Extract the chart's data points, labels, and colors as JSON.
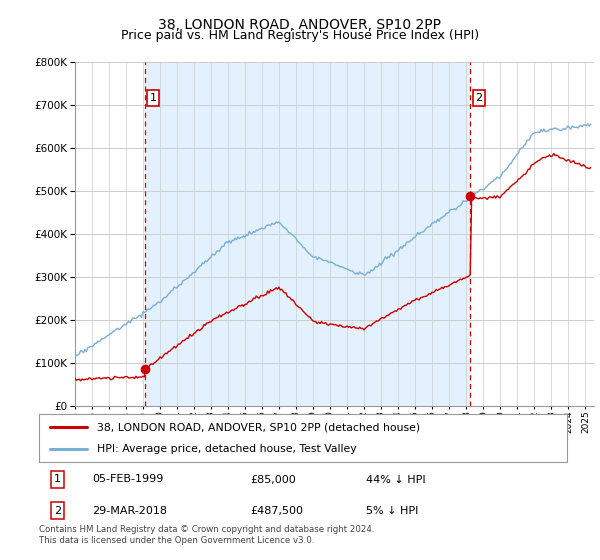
{
  "title": "38, LONDON ROAD, ANDOVER, SP10 2PP",
  "subtitle": "Price paid vs. HM Land Registry's House Price Index (HPI)",
  "ylim": [
    0,
    800000
  ],
  "yticks": [
    0,
    100000,
    200000,
    300000,
    400000,
    500000,
    600000,
    700000,
    800000
  ],
  "xlim_start": 1995.0,
  "xlim_end": 2025.5,
  "sale1_date": 1999.09,
  "sale1_price": 85000,
  "sale1_label": "1",
  "sale2_date": 2018.24,
  "sale2_price": 487500,
  "sale2_label": "2",
  "legend_property": "38, LONDON ROAD, ANDOVER, SP10 2PP (detached house)",
  "legend_hpi": "HPI: Average price, detached house, Test Valley",
  "table_row1_num": "1",
  "table_row1_date": "05-FEB-1999",
  "table_row1_price": "£85,000",
  "table_row1_hpi": "44% ↓ HPI",
  "table_row2_num": "2",
  "table_row2_date": "29-MAR-2018",
  "table_row2_price": "£487,500",
  "table_row2_hpi": "5% ↓ HPI",
  "footnote": "Contains HM Land Registry data © Crown copyright and database right 2024.\nThis data is licensed under the Open Government Licence v3.0.",
  "color_property": "#cc0000",
  "color_hpi": "#7aafd4",
  "color_vline": "#cc0000",
  "bg_fill": "#ddeeff",
  "bg_white": "#ffffff",
  "grid_color": "#cccccc",
  "title_fontsize": 10,
  "subtitle_fontsize": 9
}
